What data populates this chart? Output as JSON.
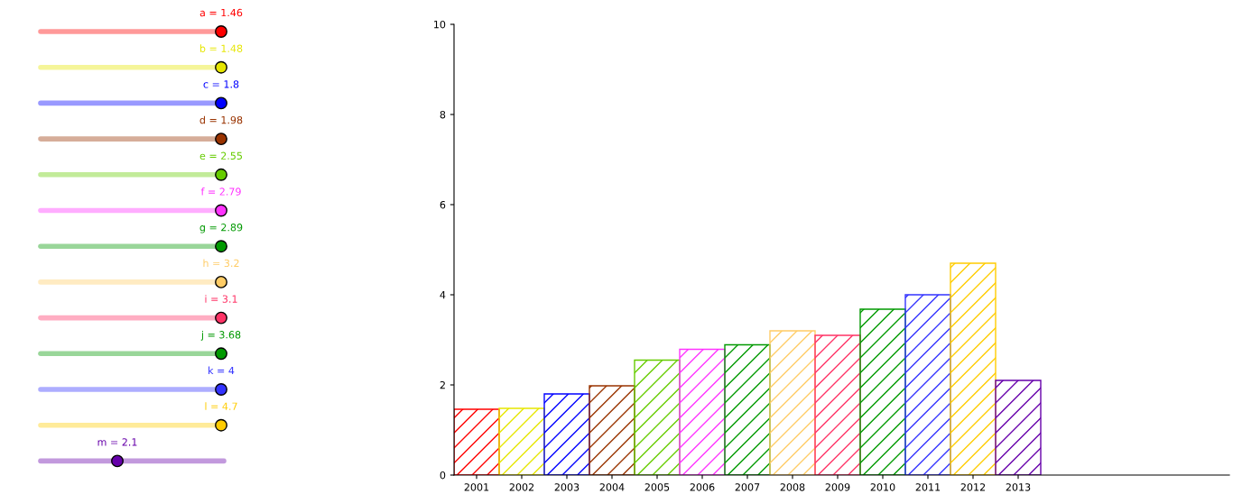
{
  "chart_data": {
    "type": "bar",
    "categories": [
      "2001",
      "2002",
      "2003",
      "2004",
      "2005",
      "2006",
      "2007",
      "2008",
      "2009",
      "2010",
      "2011",
      "2012",
      "2013"
    ],
    "values": [
      1.46,
      1.48,
      1.8,
      1.98,
      2.55,
      2.79,
      2.89,
      3.2,
      3.1,
      3.68,
      4,
      4.7,
      2.1
    ],
    "colors": [
      "#ff0000",
      "#e6e600",
      "#0000ff",
      "#993300",
      "#66cc00",
      "#ff33ff",
      "#009900",
      "#ffcc66",
      "#ff3366",
      "#009900",
      "#3333ff",
      "#ffcc00",
      "#6600aa"
    ],
    "ylim": [
      0,
      10
    ],
    "yticks": [
      0,
      2,
      4,
      6,
      8,
      10
    ],
    "grid": false,
    "legend": false,
    "annotations": [
      "a = 1.46",
      "b = 1.48",
      "c = 1.8",
      "d = 1.98",
      "e = 2.55",
      "f = 2.79",
      "g = 2.89",
      "h = 3.2",
      "i = 3.1",
      "j = 3.68",
      "k = 4",
      "l = 4.7",
      "m = 2.1"
    ]
  }
}
